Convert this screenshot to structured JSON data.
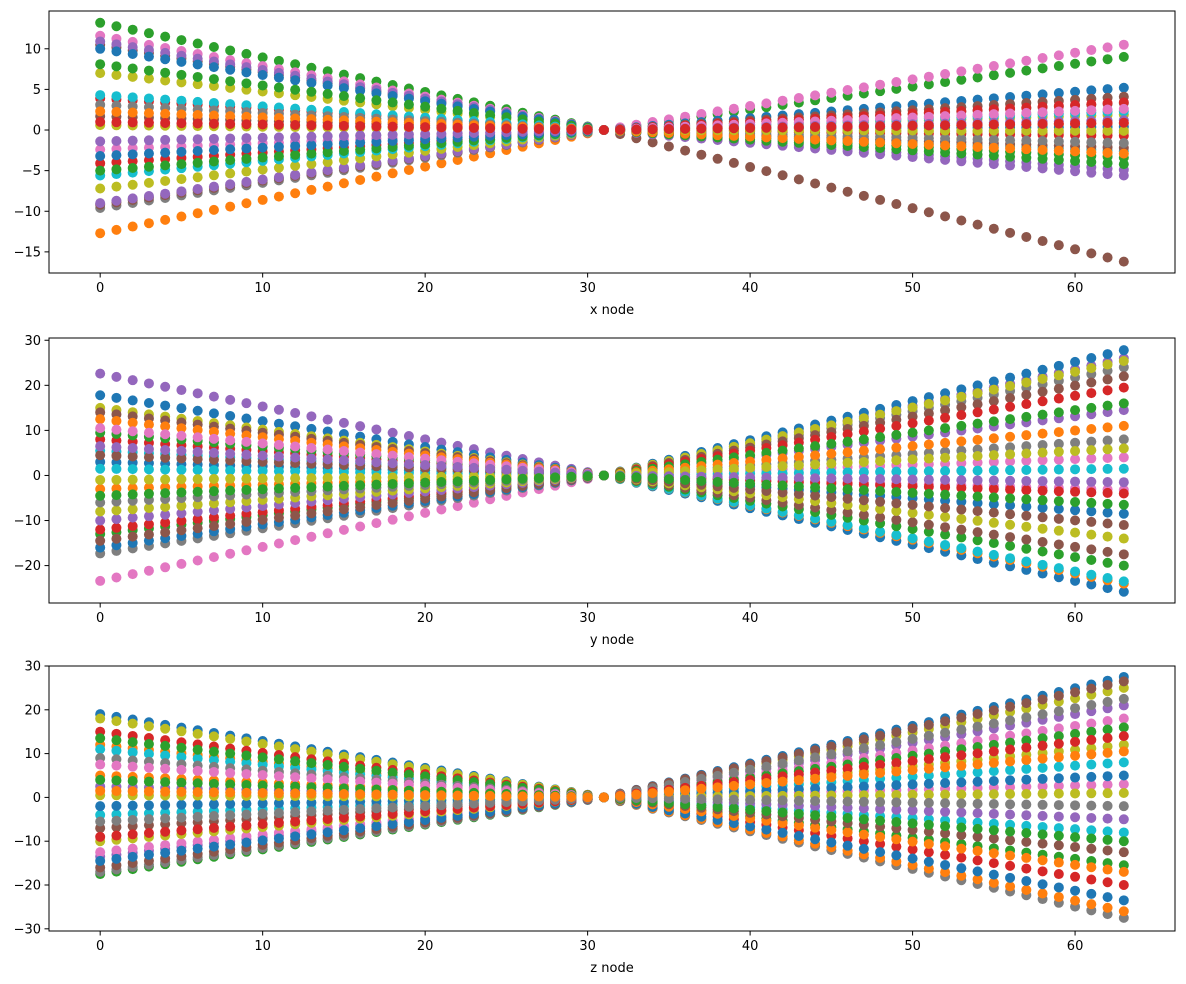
{
  "chart_data": [
    {
      "type": "scatter",
      "title": "",
      "xlabel": "x node",
      "ylabel": "",
      "xlim": [
        -3.15,
        66.15
      ],
      "ylim": [
        -17.6,
        14.65
      ],
      "xticks": [
        0,
        10,
        20,
        30,
        40,
        50,
        60
      ],
      "yticks": [
        -15,
        -10,
        -5,
        0,
        5,
        10
      ],
      "n_nodes": 64,
      "pinch_node": 31,
      "grid": false,
      "series_colors": [
        "#1f77b4",
        "#ff7f0e",
        "#2ca02c",
        "#d62728",
        "#9467bd",
        "#8c564b",
        "#e377c2",
        "#7f7f7f",
        "#bcbd22",
        "#17becf"
      ],
      "series": [
        {
          "color": "#2ca02c",
          "start": 13.2,
          "end": 9.0
        },
        {
          "color": "#ff7f0e",
          "start": -12.7,
          "end": 0.8
        },
        {
          "color": "#e377c2",
          "start": 11.6,
          "end": 10.5
        },
        {
          "color": "#8c564b",
          "start": 10.5,
          "end": -16.2
        },
        {
          "color": "#9467bd",
          "start": 10.9,
          "end": -5.6
        },
        {
          "color": "#1f77b4",
          "start": 10.0,
          "end": 5.2
        },
        {
          "color": "#7f7f7f",
          "start": -9.6,
          "end": 3.3
        },
        {
          "color": "#8c564b",
          "start": -9.2,
          "end": 4.1
        },
        {
          "color": "#9467bd",
          "start": -9.0,
          "end": -4.9
        },
        {
          "color": "#bcbd22",
          "start": -7.2,
          "end": -0.3
        },
        {
          "color": "#d62728",
          "start": -4.1,
          "end": 3.4
        },
        {
          "color": "#17becf",
          "start": -5.6,
          "end": -2.6
        },
        {
          "color": "#2ca02c",
          "start": -5.0,
          "end": -4.2
        },
        {
          "color": "#bcbd22",
          "start": 7.0,
          "end": 1.9
        },
        {
          "color": "#2ca02c",
          "start": 8.1,
          "end": -3.4
        },
        {
          "color": "#d62728",
          "start": 3.9,
          "end": -0.7
        },
        {
          "color": "#17becf",
          "start": 4.3,
          "end": 2.3
        },
        {
          "color": "#e377c2",
          "start": -2.4,
          "end": 2.6
        },
        {
          "color": "#8c564b",
          "start": 1.7,
          "end": -2.2
        },
        {
          "color": "#7f7f7f",
          "start": 3.1,
          "end": -1.6
        },
        {
          "color": "#1f77b4",
          "start": -3.2,
          "end": 0.4
        },
        {
          "color": "#ff7f0e",
          "start": 2.3,
          "end": -2.9
        },
        {
          "color": "#bcbd22",
          "start": 0.6,
          "end": -0.1
        },
        {
          "color": "#9467bd",
          "start": -1.4,
          "end": 1.2
        },
        {
          "color": "#d62728",
          "start": 1.0,
          "end": 0.9
        }
      ]
    },
    {
      "type": "scatter",
      "title": "",
      "xlabel": "y node",
      "ylabel": "",
      "xlim": [
        -3.15,
        66.15
      ],
      "ylim": [
        -28.3,
        30.5
      ],
      "xticks": [
        0,
        10,
        20,
        30,
        40,
        50,
        60
      ],
      "yticks": [
        -20,
        -10,
        0,
        10,
        20,
        30
      ],
      "n_nodes": 64,
      "pinch_node": 31,
      "grid": false,
      "series_colors": [
        "#1f77b4",
        "#ff7f0e",
        "#2ca02c",
        "#d62728",
        "#9467bd",
        "#8c564b",
        "#e377c2",
        "#7f7f7f",
        "#bcbd22",
        "#17becf"
      ],
      "series": [
        {
          "color": "#9467bd",
          "start": 22.6,
          "end": 26.0
        },
        {
          "color": "#e377c2",
          "start": -23.4,
          "end": -3.2
        },
        {
          "color": "#1f77b4",
          "start": 17.8,
          "end": 27.8
        },
        {
          "color": "#7f7f7f",
          "start": -17.3,
          "end": 24.0
        },
        {
          "color": "#bcbd22",
          "start": 15.0,
          "end": 25.4
        },
        {
          "color": "#8c564b",
          "start": 14.0,
          "end": 22.0
        },
        {
          "color": "#1f77b4",
          "start": -16.0,
          "end": -25.8
        },
        {
          "color": "#ff7f0e",
          "start": 12.5,
          "end": -24.0
        },
        {
          "color": "#17becf",
          "start": 5.5,
          "end": -23.5
        },
        {
          "color": "#2ca02c",
          "start": -13.0,
          "end": -20.0
        },
        {
          "color": "#d62728",
          "start": -12.0,
          "end": 19.5
        },
        {
          "color": "#8c564b",
          "start": -14.5,
          "end": -17.5
        },
        {
          "color": "#9467bd",
          "start": -10.0,
          "end": 14.5
        },
        {
          "color": "#bcbd22",
          "start": -8.0,
          "end": -14.0
        },
        {
          "color": "#d62728",
          "start": 8.0,
          "end": -4.0
        },
        {
          "color": "#2ca02c",
          "start": 9.5,
          "end": 16.0
        },
        {
          "color": "#e377c2",
          "start": 10.5,
          "end": 4.0
        },
        {
          "color": "#1f77b4",
          "start": 3.0,
          "end": -8.5
        },
        {
          "color": "#7f7f7f",
          "start": -6.0,
          "end": 8.0
        },
        {
          "color": "#ff7f0e",
          "start": -3.0,
          "end": 11.0
        },
        {
          "color": "#17becf",
          "start": 1.5,
          "end": 1.5
        },
        {
          "color": "#8c564b",
          "start": 4.5,
          "end": -11.0
        },
        {
          "color": "#bcbd22",
          "start": -1.0,
          "end": 6.0
        },
        {
          "color": "#9467bd",
          "start": 6.5,
          "end": -1.5
        },
        {
          "color": "#2ca02c",
          "start": -4.5,
          "end": -6.5
        }
      ]
    },
    {
      "type": "scatter",
      "title": "",
      "xlabel": "z node",
      "ylabel": "",
      "xlim": [
        -3.15,
        66.15
      ],
      "ylim": [
        -30.5,
        30.0
      ],
      "xticks": [
        0,
        10,
        20,
        30,
        40,
        50,
        60
      ],
      "yticks": [
        -30,
        -20,
        -10,
        0,
        10,
        20,
        30
      ],
      "n_nodes": 64,
      "pinch_node": 31,
      "grid": false,
      "series_colors": [
        "#1f77b4",
        "#ff7f0e",
        "#2ca02c",
        "#d62728",
        "#9467bd",
        "#8c564b",
        "#e377c2",
        "#7f7f7f",
        "#bcbd22",
        "#17becf"
      ],
      "series": [
        {
          "color": "#1f77b4",
          "start": 19.0,
          "end": 27.5
        },
        {
          "color": "#2ca02c",
          "start": -17.5,
          "end": -15.5
        },
        {
          "color": "#7f7f7f",
          "start": -17.0,
          "end": -27.5
        },
        {
          "color": "#bcbd22",
          "start": 18.0,
          "end": 25.0
        },
        {
          "color": "#8c564b",
          "start": -16.0,
          "end": 26.5
        },
        {
          "color": "#ff7f0e",
          "start": 12.0,
          "end": -26.0
        },
        {
          "color": "#d62728",
          "start": 15.0,
          "end": -20.0
        },
        {
          "color": "#9467bd",
          "start": -13.5,
          "end": 21.0
        },
        {
          "color": "#17becf",
          "start": 11.0,
          "end": -8.0
        },
        {
          "color": "#e377c2",
          "start": -12.5,
          "end": 18.0
        },
        {
          "color": "#1f77b4",
          "start": -14.5,
          "end": -23.5
        },
        {
          "color": "#2ca02c",
          "start": 13.5,
          "end": 16.0
        },
        {
          "color": "#bcbd22",
          "start": -10.0,
          "end": 12.0
        },
        {
          "color": "#7f7f7f",
          "start": 9.0,
          "end": 22.5
        },
        {
          "color": "#ff7f0e",
          "start": 5.0,
          "end": -17.0
        },
        {
          "color": "#8c564b",
          "start": -7.0,
          "end": -12.5
        },
        {
          "color": "#17becf",
          "start": -4.0,
          "end": 8.0
        },
        {
          "color": "#e377c2",
          "start": 7.5,
          "end": 3.0
        },
        {
          "color": "#d62728",
          "start": -9.0,
          "end": 14.0
        },
        {
          "color": "#9467bd",
          "start": 2.5,
          "end": -5.0
        },
        {
          "color": "#1f77b4",
          "start": -2.0,
          "end": 5.0
        },
        {
          "color": "#2ca02c",
          "start": 4.0,
          "end": -10.0
        },
        {
          "color": "#bcbd22",
          "start": 0.5,
          "end": 1.0
        },
        {
          "color": "#7f7f7f",
          "start": -5.5,
          "end": -2.0
        },
        {
          "color": "#ff7f0e",
          "start": 1.5,
          "end": 10.5
        }
      ]
    }
  ]
}
